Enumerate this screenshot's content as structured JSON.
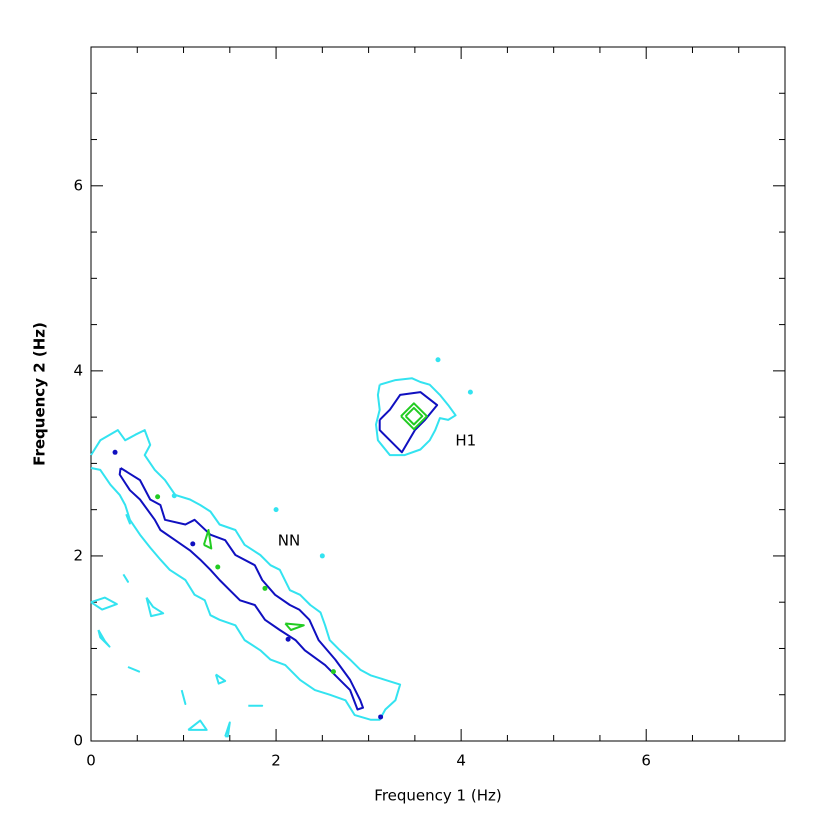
{
  "chart_data": {
    "type": "contour",
    "xlabel": "Frequency 1 (Hz)",
    "ylabel": "Frequency 2 (Hz)",
    "xlim": [
      0,
      7.5
    ],
    "ylim": [
      0,
      7.5
    ],
    "xticks": [
      0,
      2,
      4,
      6
    ],
    "yticks": [
      0,
      2,
      4,
      6
    ],
    "minor_ticks": [
      0.5,
      1,
      1.5,
      2.5,
      3,
      3.5,
      4.5,
      5,
      5.5,
      6.5,
      7
    ],
    "annotations": [
      {
        "text": "NN",
        "x": 2.14,
        "y": 2.16
      },
      {
        "text": "H1",
        "x": 4.05,
        "y": 3.24
      }
    ],
    "contours": [
      {
        "color": "#33e3f0",
        "x": [
          0.0,
          0.1,
          0.29,
          0.37,
          0.48,
          0.58,
          0.64,
          0.58,
          0.69,
          0.8,
          0.91,
          1.07,
          1.18,
          1.29,
          1.39,
          1.56,
          1.66,
          1.83,
          1.94,
          2.04,
          2.15,
          2.26,
          2.37,
          2.48,
          2.53,
          2.58,
          2.69,
          2.8,
          2.91,
          3.02,
          3.18,
          3.34,
          3.29,
          3.18,
          3.12,
          3.02,
          2.85,
          2.75,
          2.58,
          2.42,
          2.26,
          2.1,
          1.94,
          1.83,
          1.66,
          1.56,
          1.39,
          1.29,
          1.23,
          1.12,
          1.02,
          0.85,
          0.75,
          0.64,
          0.53,
          0.42,
          0.37,
          0.31,
          0.21,
          0.1,
          0.0
        ],
        "y": [
          3.09,
          3.25,
          3.36,
          3.25,
          3.31,
          3.36,
          3.2,
          3.09,
          2.93,
          2.82,
          2.66,
          2.61,
          2.55,
          2.48,
          2.34,
          2.28,
          2.12,
          2.01,
          1.9,
          1.85,
          1.63,
          1.58,
          1.47,
          1.39,
          1.25,
          1.09,
          0.98,
          0.88,
          0.77,
          0.71,
          0.66,
          0.61,
          0.44,
          0.34,
          0.23,
          0.23,
          0.28,
          0.44,
          0.5,
          0.55,
          0.66,
          0.82,
          0.88,
          0.98,
          1.09,
          1.25,
          1.31,
          1.36,
          1.52,
          1.58,
          1.74,
          1.85,
          1.96,
          2.09,
          2.23,
          2.39,
          2.55,
          2.66,
          2.77,
          2.93,
          2.95
        ]
      },
      {
        "color": "#1010c0",
        "x": [
          0.32,
          0.53,
          0.64,
          0.75,
          0.8,
          1.02,
          1.12,
          1.29,
          1.45,
          1.56,
          1.77,
          1.85,
          1.99,
          2.15,
          2.25,
          2.36,
          2.46,
          2.64,
          2.8,
          2.91,
          2.94,
          2.88,
          2.8,
          2.69,
          2.53,
          2.31,
          2.21,
          2.04,
          1.88,
          1.77,
          1.61,
          1.5,
          1.39,
          1.29,
          1.18,
          1.07,
          0.91,
          0.75,
          0.69,
          0.53,
          0.42,
          0.31,
          0.32
        ],
        "y": [
          2.95,
          2.82,
          2.61,
          2.55,
          2.39,
          2.34,
          2.39,
          2.23,
          2.17,
          2.01,
          1.9,
          1.74,
          1.58,
          1.47,
          1.42,
          1.31,
          1.09,
          0.88,
          0.66,
          0.44,
          0.36,
          0.34,
          0.55,
          0.66,
          0.82,
          0.98,
          1.09,
          1.2,
          1.31,
          1.47,
          1.52,
          1.63,
          1.74,
          1.85,
          1.96,
          2.06,
          2.17,
          2.28,
          2.39,
          2.61,
          2.71,
          2.88,
          2.95
        ]
      },
      {
        "color": "#33e3f0",
        "x": [
          3.12,
          3.29,
          3.47,
          3.56,
          3.66,
          3.77,
          3.86,
          3.94,
          3.86,
          3.77,
          3.72,
          3.66,
          3.56,
          3.39,
          3.23,
          3.1,
          3.08,
          3.12,
          3.1,
          3.12
        ],
        "y": [
          3.85,
          3.9,
          3.92,
          3.88,
          3.85,
          3.74,
          3.63,
          3.52,
          3.47,
          3.49,
          3.36,
          3.25,
          3.15,
          3.09,
          3.09,
          3.25,
          3.42,
          3.58,
          3.74,
          3.85
        ]
      },
      {
        "color": "#1010c0",
        "x": [
          3.12,
          3.23,
          3.34,
          3.56,
          3.74,
          3.61,
          3.5,
          3.36,
          3.23,
          3.12,
          3.12
        ],
        "y": [
          3.47,
          3.58,
          3.74,
          3.77,
          3.63,
          3.47,
          3.36,
          3.12,
          3.25,
          3.36,
          3.47
        ]
      },
      {
        "color": "#22cc22",
        "x": [
          3.35,
          3.49,
          3.63,
          3.49,
          3.35
        ],
        "y": [
          3.51,
          3.65,
          3.51,
          3.37,
          3.51
        ]
      },
      {
        "color": "#22cc22",
        "x": [
          3.4,
          3.49,
          3.58,
          3.49,
          3.4
        ],
        "y": [
          3.51,
          3.6,
          3.51,
          3.42,
          3.51
        ]
      },
      {
        "color": "#22cc22",
        "x": [
          1.22,
          1.27,
          1.3,
          1.22
        ],
        "y": [
          2.12,
          2.28,
          2.08,
          2.12
        ]
      },
      {
        "color": "#22cc22",
        "x": [
          2.1,
          2.3,
          2.16,
          2.1
        ],
        "y": [
          1.27,
          1.25,
          1.2,
          1.27
        ]
      },
      {
        "color": "#33e3f0",
        "x": [
          0.0,
          0.15,
          0.28,
          0.12,
          0.0
        ],
        "y": [
          1.5,
          1.55,
          1.48,
          1.42,
          1.5
        ]
      },
      {
        "color": "#33e3f0",
        "x": [
          0.6,
          0.67,
          0.78,
          0.65,
          0.6
        ],
        "y": [
          1.55,
          1.45,
          1.38,
          1.35,
          1.55
        ]
      },
      {
        "color": "#33e3f0",
        "x": [
          0.08,
          0.15,
          0.2,
          0.1,
          0.08
        ],
        "y": [
          1.2,
          1.08,
          1.02,
          1.12,
          1.2
        ]
      },
      {
        "color": "#33e3f0",
        "x": [
          0.4,
          0.52,
          0.4
        ],
        "y": [
          0.8,
          0.75,
          0.8
        ]
      },
      {
        "color": "#33e3f0",
        "x": [
          1.35,
          1.45,
          1.38,
          1.35
        ],
        "y": [
          0.72,
          0.65,
          0.62,
          0.72
        ]
      },
      {
        "color": "#33e3f0",
        "x": [
          0.98,
          1.02,
          0.98
        ],
        "y": [
          0.55,
          0.4,
          0.55
        ]
      },
      {
        "color": "#33e3f0",
        "x": [
          1.05,
          1.18,
          1.25,
          1.05
        ],
        "y": [
          0.12,
          0.22,
          0.12,
          0.12
        ]
      },
      {
        "color": "#33e3f0",
        "x": [
          1.45,
          1.5,
          1.48,
          1.45
        ],
        "y": [
          0.05,
          0.2,
          0.05,
          0.05
        ]
      },
      {
        "color": "#33e3f0",
        "x": [
          1.7,
          1.85,
          1.7
        ],
        "y": [
          0.38,
          0.38,
          0.38
        ]
      },
      {
        "color": "#33e3f0",
        "x": [
          0.35,
          0.4,
          0.35
        ],
        "y": [
          1.8,
          1.72,
          1.8
        ]
      },
      {
        "color": "#33e3f0",
        "x": [
          0.38,
          0.42,
          0.38
        ],
        "y": [
          2.45,
          2.35,
          2.45
        ]
      }
    ],
    "points": [
      {
        "color": "#22cc22",
        "x": [
          0.72,
          2.62,
          1.37,
          1.88
        ],
        "y": [
          2.64,
          0.75,
          1.88,
          1.65
        ]
      },
      {
        "color": "#1010c0",
        "x": [
          0.26,
          1.1,
          2.13,
          3.13
        ],
        "y": [
          3.12,
          2.13,
          1.1,
          0.26
        ]
      },
      {
        "color": "#33e3f0",
        "x": [
          3.75,
          4.1,
          2.0,
          2.5,
          0.9
        ],
        "y": [
          4.12,
          3.77,
          2.5,
          2.0,
          2.65
        ]
      }
    ]
  }
}
